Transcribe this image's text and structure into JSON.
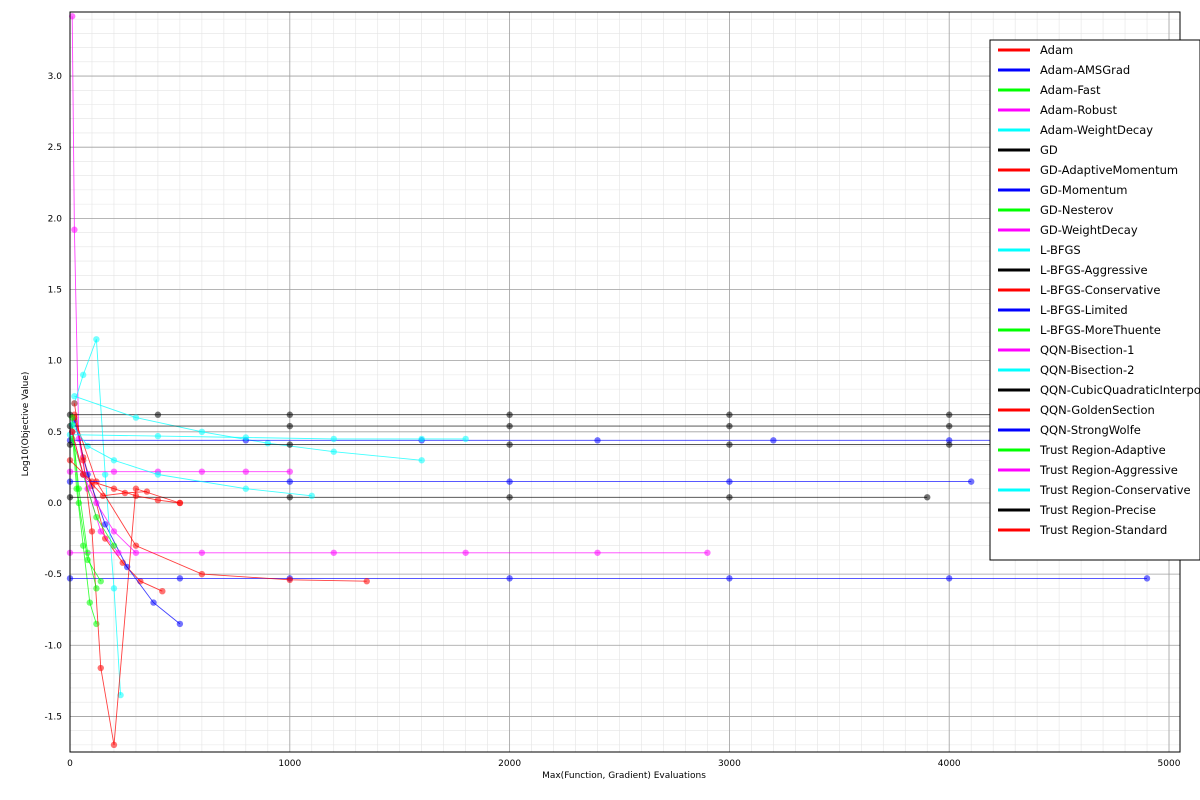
{
  "chart_data": {
    "type": "line",
    "title": "",
    "xlabel": "Max(Function, Gradient) Evaluations",
    "ylabel": "Log10(Objective Value)",
    "xlim": [
      0,
      5050
    ],
    "ylim": [
      -1.75,
      3.45
    ],
    "xticks": [
      0,
      1000,
      2000,
      3000,
      4000,
      5000
    ],
    "yticks": [
      -1.5,
      -1.0,
      -0.5,
      0.0,
      0.5,
      1.0,
      1.5,
      2.0,
      2.5,
      3.0
    ],
    "grid": true,
    "minor_grid": true,
    "legend_position": "top-right",
    "series": [
      {
        "name": "Adam",
        "color": "#ff0000",
        "x": [
          20,
          60,
          100,
          160,
          240,
          320,
          420
        ],
        "y": [
          0.62,
          0.32,
          0.12,
          -0.25,
          -0.42,
          -0.55,
          -0.62
        ]
      },
      {
        "name": "Adam-AMSGrad",
        "color": "#0000ff",
        "x": [
          20,
          80,
          160,
          260,
          380,
          500
        ],
        "y": [
          0.58,
          0.2,
          -0.15,
          -0.45,
          -0.7,
          -0.85
        ]
      },
      {
        "name": "Adam-Fast",
        "color": "#00ff00",
        "x": [
          10,
          30,
          60,
          90,
          120
        ],
        "y": [
          0.5,
          0.1,
          -0.3,
          -0.7,
          -0.85
        ]
      },
      {
        "name": "Adam-Robust",
        "color": "#ff00ff",
        "x": [
          10,
          20,
          40,
          80,
          140,
          220
        ],
        "y": [
          3.42,
          1.92,
          0.45,
          0.1,
          -0.2,
          -0.35
        ]
      },
      {
        "name": "Adam-WeightDecay",
        "color": "#00ffff",
        "x": [
          20,
          60,
          120,
          160,
          200,
          230
        ],
        "y": [
          0.7,
          0.9,
          1.15,
          0.2,
          -0.6,
          -1.35
        ]
      },
      {
        "name": "GD",
        "color": "#000000",
        "x": [
          0,
          400,
          1000,
          2000,
          3000,
          4000,
          5000
        ],
        "y": [
          0.62,
          0.62,
          0.62,
          0.62,
          0.62,
          0.62,
          0.62
        ]
      },
      {
        "name": "GD-AdaptiveMomentum",
        "color": "#ff0000",
        "x": [
          20,
          60,
          100,
          140,
          200,
          300,
          500
        ],
        "y": [
          0.7,
          0.3,
          -0.2,
          -1.16,
          -1.7,
          0.1,
          0.0
        ]
      },
      {
        "name": "GD-Momentum",
        "color": "#0000ff",
        "x": [
          0,
          500,
          1000,
          2000,
          3000,
          4000,
          4900
        ],
        "y": [
          -0.53,
          -0.53,
          -0.53,
          -0.53,
          -0.53,
          -0.53,
          -0.53
        ]
      },
      {
        "name": "GD-Nesterov",
        "color": "#00ff00",
        "x": [
          10,
          40,
          80,
          120
        ],
        "y": [
          0.55,
          0.1,
          -0.35,
          -0.6
        ]
      },
      {
        "name": "GD-WeightDecay",
        "color": "#ff00ff",
        "x": [
          0,
          600,
          1200,
          1800,
          2400,
          2900
        ],
        "y": [
          -0.35,
          -0.35,
          -0.35,
          -0.35,
          -0.35,
          -0.35
        ]
      },
      {
        "name": "L-BFGS",
        "color": "#00ffff",
        "x": [
          20,
          300,
          600,
          900,
          1200,
          1600
        ],
        "y": [
          0.75,
          0.6,
          0.5,
          0.42,
          0.36,
          0.3
        ]
      },
      {
        "name": "L-BFGS-Aggressive",
        "color": "#000000",
        "x": [
          0,
          1000,
          2000,
          3000,
          4000,
          5000
        ],
        "y": [
          0.54,
          0.54,
          0.54,
          0.54,
          0.54,
          0.54
        ]
      },
      {
        "name": "L-BFGS-Conservative",
        "color": "#ff0000",
        "x": [
          20,
          120,
          300,
          600,
          1000,
          1350
        ],
        "y": [
          0.6,
          0.15,
          -0.3,
          -0.5,
          -0.54,
          -0.55
        ]
      },
      {
        "name": "L-BFGS-Limited",
        "color": "#0000ff",
        "x": [
          0,
          800,
          1600,
          2400,
          3200,
          4000,
          4800
        ],
        "y": [
          0.44,
          0.44,
          0.44,
          0.44,
          0.44,
          0.44,
          0.44
        ]
      },
      {
        "name": "L-BFGS-MoreThuente",
        "color": "#00ff00",
        "x": [
          10,
          40,
          80,
          140
        ],
        "y": [
          0.6,
          0.0,
          -0.4,
          -0.55
        ]
      },
      {
        "name": "QQN-Bisection-1",
        "color": "#ff00ff",
        "x": [
          0,
          200,
          400,
          600,
          800,
          1000
        ],
        "y": [
          0.22,
          0.22,
          0.22,
          0.22,
          0.22,
          0.22
        ]
      },
      {
        "name": "QQN-Bisection-2",
        "color": "#00ffff",
        "x": [
          0,
          400,
          800,
          1200,
          1600,
          1800
        ],
        "y": [
          0.48,
          0.47,
          0.46,
          0.45,
          0.45,
          0.45
        ]
      },
      {
        "name": "QQN-CubicQuadraticInterpolation",
        "color": "#000000",
        "x": [
          0,
          1000,
          2000,
          3000,
          3900
        ],
        "y": [
          0.04,
          0.04,
          0.04,
          0.04,
          0.04
        ]
      },
      {
        "name": "QQN-GoldenSection",
        "color": "#ff0000",
        "x": [
          0,
          100,
          200,
          300,
          400,
          500
        ],
        "y": [
          0.3,
          0.15,
          0.1,
          0.05,
          0.02,
          0.0
        ]
      },
      {
        "name": "QQN-StrongWolfe",
        "color": "#0000ff",
        "x": [
          0,
          1000,
          2000,
          3000,
          4100
        ],
        "y": [
          0.15,
          0.15,
          0.15,
          0.15,
          0.15
        ]
      },
      {
        "name": "Trust Region-Adaptive",
        "color": "#00ff00",
        "x": [
          10,
          60,
          120,
          200
        ],
        "y": [
          0.45,
          0.2,
          -0.1,
          -0.3
        ]
      },
      {
        "name": "Trust Region-Aggressive",
        "color": "#ff00ff",
        "x": [
          10,
          60,
          120,
          200,
          300
        ],
        "y": [
          0.5,
          0.2,
          0.0,
          -0.2,
          -0.35
        ]
      },
      {
        "name": "Trust Region-Conservative",
        "color": "#00ffff",
        "x": [
          10,
          80,
          200,
          400,
          800,
          1100
        ],
        "y": [
          0.55,
          0.4,
          0.3,
          0.2,
          0.1,
          0.05
        ]
      },
      {
        "name": "Trust Region-Precise",
        "color": "#000000",
        "x": [
          0,
          1000,
          2000,
          3000,
          4000,
          5000
        ],
        "y": [
          0.41,
          0.41,
          0.41,
          0.41,
          0.41,
          0.41
        ]
      },
      {
        "name": "Trust Region-Standard",
        "color": "#ff0000",
        "x": [
          10,
          60,
          150,
          250,
          350
        ],
        "y": [
          0.5,
          0.2,
          0.05,
          0.07,
          0.08
        ]
      }
    ]
  }
}
